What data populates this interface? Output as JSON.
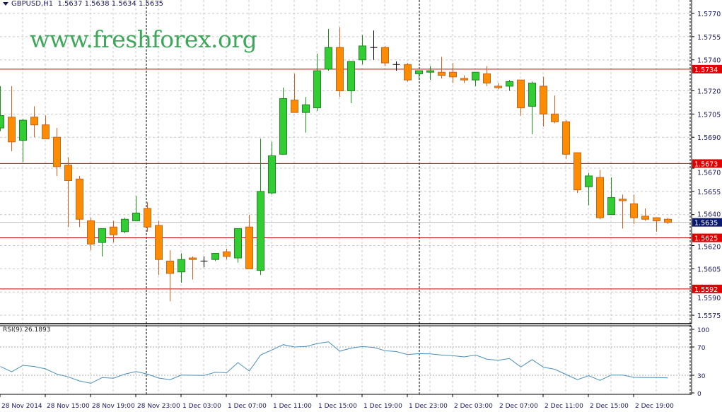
{
  "header": {
    "symbol": "GBPUSD,H1",
    "ohlc_text": "1.5637 1.5638 1.5634 1.5635"
  },
  "watermark": "www.freshforex.org",
  "colors": {
    "bull_fill": "#32cd32",
    "bull_border": "#1f8a1f",
    "bear_fill": "#ff8c00",
    "bear_border": "#c8641e",
    "doji": "#000000",
    "level_line": "#c00000",
    "level_label_bg": "#e00000",
    "price_label_bg": "#0a1a6e",
    "rsi_line": "#4a8fb8",
    "grid": "#c8c8c8"
  },
  "chart_data": {
    "type": "candlestick",
    "symbol": "GBPUSD",
    "timeframe": "H1",
    "ylim": [
      1.55695,
      1.57787
    ],
    "grid": true,
    "y_ticks": [
      "1.5770",
      "1.5755",
      "1.5740",
      "1.5720",
      "1.5705",
      "1.5690",
      "1.5670",
      "1.5655",
      "1.5640",
      "1.5620",
      "1.5605",
      "1.5590",
      "1.5575"
    ],
    "x_tick_labels": [
      "28 Nov 2014",
      "28 Nov 15:00",
      "28 Nov 19:00",
      "28 Nov 23:00",
      "1 Dec 03:00",
      "1 Dec 07:00",
      "1 Dec 11:00",
      "1 Dec 15:00",
      "1 Dec 19:00",
      "1 Dec 23:00",
      "2 Dec 03:00",
      "2 Dec 07:00",
      "2 Dec 11:00",
      "2 Dec 15:00",
      "2 Dec 19:00"
    ],
    "levels": [
      "1.5734",
      "1.5673",
      "1.5625",
      "1.5592"
    ],
    "current_price": "1.5635",
    "ohlc": [
      [
        1.5696,
        1.5723,
        1.5694,
        1.5704
      ],
      [
        1.5703,
        1.5723,
        1.5681,
        1.5687
      ],
      [
        1.5688,
        1.5702,
        1.5674,
        1.5701
      ],
      [
        1.5703,
        1.571,
        1.569,
        1.5698
      ],
      [
        1.5698,
        1.5704,
        1.5689,
        1.5689
      ],
      [
        1.569,
        1.5696,
        1.5665,
        1.5671
      ],
      [
        1.5672,
        1.5677,
        1.5632,
        1.5662
      ],
      [
        1.5663,
        1.5665,
        1.5632,
        1.5637
      ],
      [
        1.5636,
        1.5638,
        1.5617,
        1.5621
      ],
      [
        1.5622,
        1.5631,
        1.5613,
        1.5631
      ],
      [
        1.5632,
        1.5636,
        1.5622,
        1.5627
      ],
      [
        1.5629,
        1.5638,
        1.5628,
        1.5637
      ],
      [
        1.5636,
        1.5652,
        1.5636,
        1.5641
      ],
      [
        1.5644,
        1.5648,
        1.5629,
        1.5632
      ],
      [
        1.5633,
        1.5636,
        1.5601,
        1.5611
      ],
      [
        1.561,
        1.5617,
        1.5584,
        1.5602
      ],
      [
        1.5603,
        1.5615,
        1.5596,
        1.5611
      ],
      [
        1.5612,
        1.5613,
        1.5598,
        1.5611
      ],
      [
        1.561,
        1.5613,
        1.5606,
        1.561
      ],
      [
        1.5611,
        1.5615,
        1.561,
        1.5615
      ],
      [
        1.5616,
        1.5618,
        1.5611,
        1.5613
      ],
      [
        1.5612,
        1.5631,
        1.5609,
        1.5631
      ],
      [
        1.5632,
        1.564,
        1.5605,
        1.5605
      ],
      [
        1.5604,
        1.5689,
        1.5601,
        1.5655
      ],
      [
        1.5654,
        1.5687,
        1.5653,
        1.5678
      ],
      [
        1.5679,
        1.5722,
        1.5679,
        1.5715
      ],
      [
        1.5714,
        1.5731,
        1.5706,
        1.5706
      ],
      [
        1.5706,
        1.5716,
        1.5693,
        1.5711
      ],
      [
        1.5709,
        1.5744,
        1.5707,
        1.5733
      ],
      [
        1.5734,
        1.576,
        1.5733,
        1.5748
      ],
      [
        1.5748,
        1.5761,
        1.5716,
        1.572
      ],
      [
        1.572,
        1.5739,
        1.5712,
        1.5739
      ],
      [
        1.574,
        1.5756,
        1.5737,
        1.5749
      ],
      [
        1.5748,
        1.5759,
        1.574,
        1.5748
      ],
      [
        1.5748,
        1.5749,
        1.5736,
        1.5738
      ],
      [
        1.5737,
        1.5739,
        1.5733,
        1.5737
      ],
      [
        1.5737,
        1.5738,
        1.5726,
        1.5727
      ],
      [
        1.5731,
        1.5733,
        1.5727,
        1.5733
      ],
      [
        1.5732,
        1.5736,
        1.5727,
        1.5733
      ],
      [
        1.5732,
        1.5742,
        1.5728,
        1.573
      ],
      [
        1.5732,
        1.5738,
        1.5725,
        1.5729
      ],
      [
        1.5728,
        1.573,
        1.5725,
        1.5727
      ],
      [
        1.5727,
        1.5732,
        1.5723,
        1.5732
      ],
      [
        1.5731,
        1.5736,
        1.5723,
        1.5725
      ],
      [
        1.5723,
        1.5725,
        1.5721,
        1.5722
      ],
      [
        1.5723,
        1.5727,
        1.572,
        1.5726
      ],
      [
        1.5727,
        1.5727,
        1.5704,
        1.5709
      ],
      [
        1.571,
        1.5726,
        1.5692,
        1.5725
      ],
      [
        1.5723,
        1.5729,
        1.5697,
        1.5705
      ],
      [
        1.5705,
        1.5717,
        1.5699,
        1.57
      ],
      [
        1.57,
        1.5701,
        1.5676,
        1.5679
      ],
      [
        1.568,
        1.568,
        1.5654,
        1.5656
      ],
      [
        1.5658,
        1.5667,
        1.5646,
        1.5665
      ],
      [
        1.5664,
        1.5669,
        1.5637,
        1.5638
      ],
      [
        1.564,
        1.5664,
        1.564,
        1.5651
      ],
      [
        1.565,
        1.5653,
        1.5631,
        1.5649
      ],
      [
        1.5647,
        1.5653,
        1.5634,
        1.5638
      ],
      [
        1.5639,
        1.5644,
        1.5636,
        1.5637
      ],
      [
        1.5638,
        1.5638,
        1.5629,
        1.5636
      ],
      [
        1.5637,
        1.5638,
        1.5634,
        1.5635
      ]
    ],
    "indicator": {
      "label": "RSI(9) 26.1893",
      "ylim": [
        0,
        100
      ],
      "y_ticks": [
        "100",
        "70",
        "30",
        "0"
      ],
      "values": [
        42.4,
        34.9,
        44,
        42.4,
        39,
        31.6,
        27.7,
        21.9,
        18.6,
        26.7,
        25.8,
        31.6,
        35.2,
        31.6,
        26,
        23.8,
        30.3,
        30,
        29.7,
        34.2,
        33.6,
        47.9,
        35.9,
        58.6,
        65.8,
        73.3,
        70,
        70.7,
        74.9,
        77.2,
        64.1,
        68.4,
        70.7,
        69.3,
        64.8,
        63.5,
        59.3,
        60.6,
        60.2,
        58.6,
        57.6,
        56,
        58.6,
        52.8,
        51.1,
        53.7,
        41.7,
        52.1,
        41.4,
        38.5,
        31,
        23.8,
        29.3,
        22.8,
        30.3,
        30.3,
        27,
        26.7,
        26.7,
        26.1893
      ]
    }
  }
}
